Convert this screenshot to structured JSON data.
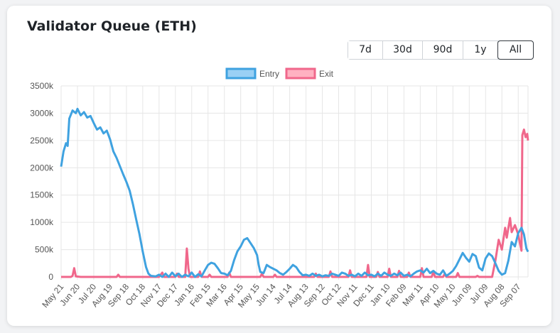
{
  "title": "Validator Queue (ETH)",
  "range_buttons": [
    {
      "label": "7d",
      "active": false
    },
    {
      "label": "30d",
      "active": false
    },
    {
      "label": "90d",
      "active": false
    },
    {
      "label": "1y",
      "active": false
    },
    {
      "label": "All",
      "active": true
    }
  ],
  "colors": {
    "entry_line": "#3fa2e0",
    "entry_fill": "#9ad0f5",
    "exit_line": "#f0678b",
    "exit_fill": "#ffb1c1",
    "grid": "#e6e6e6",
    "tick_text": "#555555"
  },
  "chart_data": {
    "type": "line",
    "title": "",
    "ylim": [
      0,
      3500
    ],
    "yticks": [
      "0",
      "500k",
      "1000k",
      "1500k",
      "2000k",
      "2500k",
      "3000k",
      "3500k"
    ],
    "xticks": [
      "May 21",
      "Jun 20",
      "Jul 20",
      "Aug 19",
      "Sep 18",
      "Oct 18",
      "Nov 17",
      "Dec 17",
      "Jan 16",
      "Feb 15",
      "Mar 16",
      "Apr 15",
      "May 15",
      "Jun 14",
      "Jul 14",
      "Aug 13",
      "Sep 12",
      "Oct 12",
      "Nov 11",
      "Dec 11",
      "Jan 10",
      "Feb 09",
      "Mar 11",
      "Apr 10",
      "May 10",
      "Jun 09",
      "Jul 09",
      "Aug 08",
      "Sep 07"
    ],
    "legend_position": "top-center",
    "grid": true,
    "x_domain": [
      0,
      28.6
    ],
    "series": [
      {
        "name": "Entry",
        "points": [
          [
            0,
            2020
          ],
          [
            0.15,
            2300
          ],
          [
            0.3,
            2450
          ],
          [
            0.4,
            2400
          ],
          [
            0.5,
            2900
          ],
          [
            0.7,
            3050
          ],
          [
            0.9,
            3000
          ],
          [
            1.0,
            3080
          ],
          [
            1.2,
            2960
          ],
          [
            1.4,
            3020
          ],
          [
            1.6,
            2920
          ],
          [
            1.8,
            2950
          ],
          [
            2.0,
            2820
          ],
          [
            2.2,
            2700
          ],
          [
            2.4,
            2740
          ],
          [
            2.6,
            2630
          ],
          [
            2.8,
            2680
          ],
          [
            3.0,
            2520
          ],
          [
            3.2,
            2300
          ],
          [
            3.4,
            2180
          ],
          [
            3.6,
            2030
          ],
          [
            3.8,
            1880
          ],
          [
            4.0,
            1740
          ],
          [
            4.2,
            1580
          ],
          [
            4.4,
            1330
          ],
          [
            4.6,
            1050
          ],
          [
            4.8,
            780
          ],
          [
            5.0,
            460
          ],
          [
            5.2,
            180
          ],
          [
            5.35,
            60
          ],
          [
            5.5,
            20
          ],
          [
            5.8,
            10
          ],
          [
            6.0,
            40
          ],
          [
            6.2,
            0
          ],
          [
            6.4,
            60
          ],
          [
            6.6,
            0
          ],
          [
            6.8,
            80
          ],
          [
            7.0,
            10
          ],
          [
            7.2,
            60
          ],
          [
            7.4,
            0
          ],
          [
            7.6,
            40
          ],
          [
            7.8,
            10
          ],
          [
            8.0,
            80
          ],
          [
            8.2,
            0
          ],
          [
            8.4,
            50
          ],
          [
            8.6,
            10
          ],
          [
            8.8,
            120
          ],
          [
            9.0,
            220
          ],
          [
            9.2,
            260
          ],
          [
            9.4,
            240
          ],
          [
            9.6,
            160
          ],
          [
            9.8,
            70
          ],
          [
            10.0,
            60
          ],
          [
            10.2,
            30
          ],
          [
            10.4,
            110
          ],
          [
            10.6,
            310
          ],
          [
            10.8,
            470
          ],
          [
            11.0,
            560
          ],
          [
            11.2,
            680
          ],
          [
            11.4,
            710
          ],
          [
            11.6,
            620
          ],
          [
            11.8,
            530
          ],
          [
            12.0,
            400
          ],
          [
            12.1,
            220
          ],
          [
            12.2,
            90
          ],
          [
            12.4,
            70
          ],
          [
            12.6,
            220
          ],
          [
            12.8,
            180
          ],
          [
            13.0,
            150
          ],
          [
            13.2,
            120
          ],
          [
            13.4,
            70
          ],
          [
            13.6,
            40
          ],
          [
            13.8,
            90
          ],
          [
            14.0,
            150
          ],
          [
            14.2,
            220
          ],
          [
            14.4,
            180
          ],
          [
            14.6,
            90
          ],
          [
            14.8,
            30
          ],
          [
            15.0,
            40
          ],
          [
            15.2,
            20
          ],
          [
            15.4,
            60
          ],
          [
            15.6,
            20
          ],
          [
            15.8,
            40
          ],
          [
            16.0,
            10
          ],
          [
            16.2,
            30
          ],
          [
            16.4,
            20
          ],
          [
            16.6,
            60
          ],
          [
            16.8,
            40
          ],
          [
            17.0,
            20
          ],
          [
            17.2,
            80
          ],
          [
            17.4,
            60
          ],
          [
            17.6,
            20
          ],
          [
            17.8,
            40
          ],
          [
            18.0,
            10
          ],
          [
            18.2,
            60
          ],
          [
            18.4,
            20
          ],
          [
            18.6,
            80
          ],
          [
            18.8,
            30
          ],
          [
            19.0,
            40
          ],
          [
            19.2,
            10
          ],
          [
            19.4,
            60
          ],
          [
            19.6,
            20
          ],
          [
            19.8,
            80
          ],
          [
            20.0,
            40
          ],
          [
            20.2,
            20
          ],
          [
            20.4,
            60
          ],
          [
            20.6,
            30
          ],
          [
            20.8,
            80
          ],
          [
            21.0,
            20
          ],
          [
            21.2,
            40
          ],
          [
            21.4,
            10
          ],
          [
            21.6,
            60
          ],
          [
            21.8,
            100
          ],
          [
            22.0,
            120
          ],
          [
            22.2,
            80
          ],
          [
            22.4,
            150
          ],
          [
            22.6,
            70
          ],
          [
            22.8,
            110
          ],
          [
            23.0,
            60
          ],
          [
            23.2,
            40
          ],
          [
            23.4,
            120
          ],
          [
            23.6,
            20
          ],
          [
            23.8,
            60
          ],
          [
            24.0,
            110
          ],
          [
            24.2,
            200
          ],
          [
            24.4,
            320
          ],
          [
            24.6,
            440
          ],
          [
            24.8,
            350
          ],
          [
            25.0,
            280
          ],
          [
            25.2,
            420
          ],
          [
            25.4,
            380
          ],
          [
            25.6,
            170
          ],
          [
            25.8,
            120
          ],
          [
            26.0,
            340
          ],
          [
            26.2,
            430
          ],
          [
            26.4,
            380
          ],
          [
            26.6,
            250
          ],
          [
            26.8,
            110
          ],
          [
            27.0,
            40
          ],
          [
            27.2,
            70
          ],
          [
            27.4,
            300
          ],
          [
            27.6,
            640
          ],
          [
            27.8,
            560
          ],
          [
            28.0,
            800
          ],
          [
            28.2,
            900
          ],
          [
            28.35,
            780
          ],
          [
            28.5,
            520
          ],
          [
            28.6,
            460
          ]
        ]
      },
      {
        "name": "Exit",
        "points": [
          [
            0,
            0
          ],
          [
            0.6,
            0
          ],
          [
            0.7,
            20
          ],
          [
            0.8,
            160
          ],
          [
            0.9,
            10
          ],
          [
            1.2,
            0
          ],
          [
            3.4,
            0
          ],
          [
            3.5,
            40
          ],
          [
            3.6,
            0
          ],
          [
            5.0,
            0
          ],
          [
            6.0,
            0
          ],
          [
            6.2,
            80
          ],
          [
            6.3,
            0
          ],
          [
            7.0,
            0
          ],
          [
            7.1,
            60
          ],
          [
            7.2,
            0
          ],
          [
            7.6,
            0
          ],
          [
            7.7,
            520
          ],
          [
            7.8,
            150
          ],
          [
            7.9,
            0
          ],
          [
            8.4,
            0
          ],
          [
            8.5,
            100
          ],
          [
            8.6,
            0
          ],
          [
            9.0,
            0
          ],
          [
            9.1,
            40
          ],
          [
            9.2,
            0
          ],
          [
            10.2,
            0
          ],
          [
            10.3,
            80
          ],
          [
            10.4,
            0
          ],
          [
            11.6,
            0
          ],
          [
            12.2,
            0
          ],
          [
            12.3,
            60
          ],
          [
            12.4,
            0
          ],
          [
            13.0,
            0
          ],
          [
            13.1,
            40
          ],
          [
            13.2,
            0
          ],
          [
            15.5,
            0
          ],
          [
            15.6,
            60
          ],
          [
            15.7,
            0
          ],
          [
            16.4,
            0
          ],
          [
            16.5,
            100
          ],
          [
            16.6,
            0
          ],
          [
            17.6,
            0
          ],
          [
            17.7,
            120
          ],
          [
            17.8,
            0
          ],
          [
            18.7,
            0
          ],
          [
            18.8,
            220
          ],
          [
            18.9,
            0
          ],
          [
            19.3,
            0
          ],
          [
            19.4,
            90
          ],
          [
            19.5,
            0
          ],
          [
            20.0,
            0
          ],
          [
            20.1,
            150
          ],
          [
            20.2,
            0
          ],
          [
            20.6,
            0
          ],
          [
            20.7,
            110
          ],
          [
            20.8,
            0
          ],
          [
            21.2,
            0
          ],
          [
            21.3,
            80
          ],
          [
            21.4,
            0
          ],
          [
            22.0,
            0
          ],
          [
            22.1,
            160
          ],
          [
            22.2,
            0
          ],
          [
            22.7,
            0
          ],
          [
            22.8,
            100
          ],
          [
            22.9,
            0
          ],
          [
            23.4,
            0
          ],
          [
            23.5,
            60
          ],
          [
            23.6,
            0
          ],
          [
            24.2,
            0
          ],
          [
            24.3,
            70
          ],
          [
            24.4,
            0
          ],
          [
            25.4,
            0
          ],
          [
            25.5,
            20
          ],
          [
            25.6,
            0
          ],
          [
            26.4,
            0
          ],
          [
            26.6,
            300
          ],
          [
            26.8,
            680
          ],
          [
            27.0,
            500
          ],
          [
            27.2,
            900
          ],
          [
            27.3,
            720
          ],
          [
            27.5,
            1080
          ],
          [
            27.6,
            820
          ],
          [
            27.8,
            950
          ],
          [
            28.0,
            780
          ],
          [
            28.1,
            620
          ],
          [
            28.2,
            480
          ],
          [
            28.25,
            2600
          ],
          [
            28.35,
            2700
          ],
          [
            28.45,
            2560
          ],
          [
            28.55,
            2620
          ],
          [
            28.6,
            2500
          ]
        ]
      }
    ]
  }
}
